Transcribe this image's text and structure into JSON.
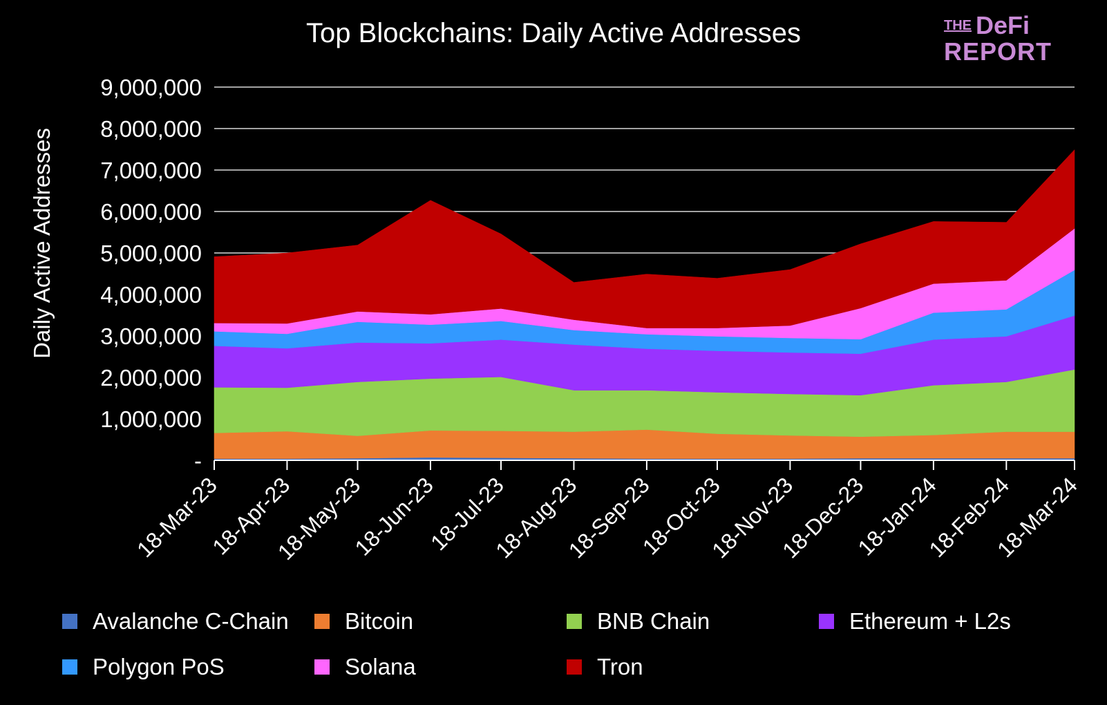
{
  "logo": {
    "top_small": "THE",
    "top_large": "DeFi",
    "bottom": "REPORT"
  },
  "chart_data": {
    "type": "area",
    "stacked": true,
    "title": "Top Blockchains:  Daily Active Addresses",
    "ylabel": "Daily Active Addresses",
    "xlabel": "",
    "ylim": [
      0,
      9000000
    ],
    "yticks": [
      {
        "value": 0,
        "label": "-"
      },
      {
        "value": 1000000,
        "label": "1,000,000"
      },
      {
        "value": 2000000,
        "label": "2,000,000"
      },
      {
        "value": 3000000,
        "label": "3,000,000"
      },
      {
        "value": 4000000,
        "label": "4,000,000"
      },
      {
        "value": 5000000,
        "label": "5,000,000"
      },
      {
        "value": 6000000,
        "label": "6,000,000"
      },
      {
        "value": 7000000,
        "label": "7,000,000"
      },
      {
        "value": 8000000,
        "label": "8,000,000"
      },
      {
        "value": 9000000,
        "label": "9,000,000"
      }
    ],
    "x": [
      "2023-03-18",
      "2023-04-18",
      "2023-05-18",
      "2023-06-18",
      "2023-07-18",
      "2023-08-18",
      "2023-09-18",
      "2023-10-18",
      "2023-11-18",
      "2023-12-18",
      "2024-01-18",
      "2024-02-18",
      "2024-03-18"
    ],
    "xtick_labels": [
      "18-Mar-23",
      "18-Apr-23",
      "18-May-23",
      "18-Jun-23",
      "18-Jul-23",
      "18-Aug-23",
      "18-Sep-23",
      "18-Oct-23",
      "18-Nov-23",
      "18-Dec-23",
      "18-Jan-24",
      "18-Feb-24",
      "18-Mar-24"
    ],
    "grid": true,
    "legend_position": "bottom",
    "series": [
      {
        "name": "Avalanche C-Chain",
        "color": "#4472c4",
        "values": [
          40000,
          40000,
          50000,
          70000,
          60000,
          50000,
          40000,
          40000,
          40000,
          50000,
          50000,
          50000,
          50000
        ]
      },
      {
        "name": "Bitcoin",
        "color": "#ed7d31",
        "values": [
          620000,
          660000,
          540000,
          650000,
          650000,
          640000,
          700000,
          600000,
          560000,
          520000,
          560000,
          640000,
          640000
        ]
      },
      {
        "name": "BNB Chain",
        "color": "#92d050",
        "values": [
          1100000,
          1050000,
          1300000,
          1250000,
          1300000,
          1000000,
          950000,
          1000000,
          1000000,
          1000000,
          1200000,
          1200000,
          1500000
        ]
      },
      {
        "name": "Ethereum + L2s",
        "color": "#9933ff",
        "values": [
          1000000,
          950000,
          950000,
          850000,
          900000,
          1100000,
          1000000,
          1000000,
          1000000,
          1000000,
          1100000,
          1100000,
          1300000
        ]
      },
      {
        "name": "Polygon PoS",
        "color": "#3399ff",
        "values": [
          350000,
          350000,
          500000,
          450000,
          450000,
          350000,
          350000,
          350000,
          350000,
          350000,
          650000,
          650000,
          1100000
        ]
      },
      {
        "name": "Solana",
        "color": "#ff66ff",
        "values": [
          200000,
          250000,
          250000,
          250000,
          300000,
          250000,
          150000,
          200000,
          300000,
          750000,
          700000,
          700000,
          1000000
        ]
      },
      {
        "name": "Tron",
        "color": "#c00000",
        "values": [
          1600000,
          1700000,
          1600000,
          2750000,
          1800000,
          900000,
          1300000,
          1200000,
          1350000,
          1550000,
          1500000,
          1400000,
          1900000
        ]
      }
    ]
  }
}
